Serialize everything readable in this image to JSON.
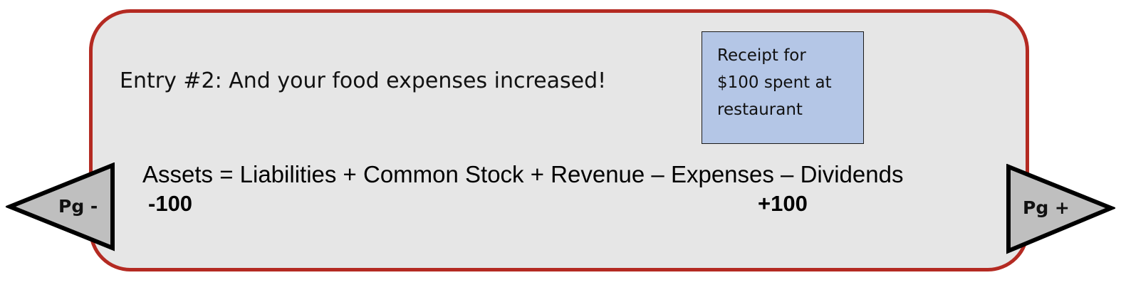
{
  "entry": {
    "title": "Entry #2: And your food expenses increased!"
  },
  "receipt": {
    "lines": [
      "Receipt for",
      "$100 spent at",
      "restaurant"
    ]
  },
  "equation": {
    "text": "Assets = Liabilities + Common Stock + Revenue – Expenses – Dividends",
    "changes": {
      "assets": "-100",
      "expenses": "+100"
    }
  },
  "navigation": {
    "prev_label": "Pg -",
    "next_label": "Pg +"
  },
  "colors": {
    "panel_border": "#b42a22",
    "panel_fill": "#e6e6e6",
    "receipt_fill": "#b4c6e6",
    "arrow_fill": "#bfbfbf"
  }
}
